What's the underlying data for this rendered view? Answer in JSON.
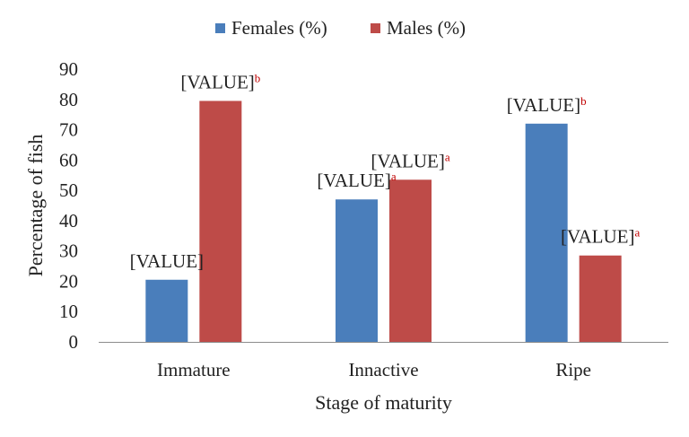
{
  "chart_data": {
    "type": "bar",
    "title": "",
    "xlabel": "Stage of maturity",
    "ylabel": "Percentage of fish",
    "categories": [
      "Immature",
      "Innactive",
      "Ripe"
    ],
    "ylim": [
      0,
      90
    ],
    "yticks": [
      0,
      10,
      20,
      30,
      40,
      50,
      60,
      70,
      80,
      90
    ],
    "grid": false,
    "legend_position": "top",
    "series": [
      {
        "name": "Females (%)",
        "color": "#4a7ebb",
        "values": [
          20.5,
          47,
          72
        ],
        "labels": [
          "[VALUE]",
          "[VALUE]",
          "[VALUE]"
        ],
        "superscripts": [
          "",
          "a",
          "b"
        ]
      },
      {
        "name": "Males (%)",
        "color": "#be4b48",
        "values": [
          79.5,
          53.5,
          28.5
        ],
        "labels": [
          "[VALUE]",
          "[VALUE]",
          "[VALUE]"
        ],
        "superscripts": [
          "b",
          "a",
          "a"
        ]
      }
    ]
  }
}
